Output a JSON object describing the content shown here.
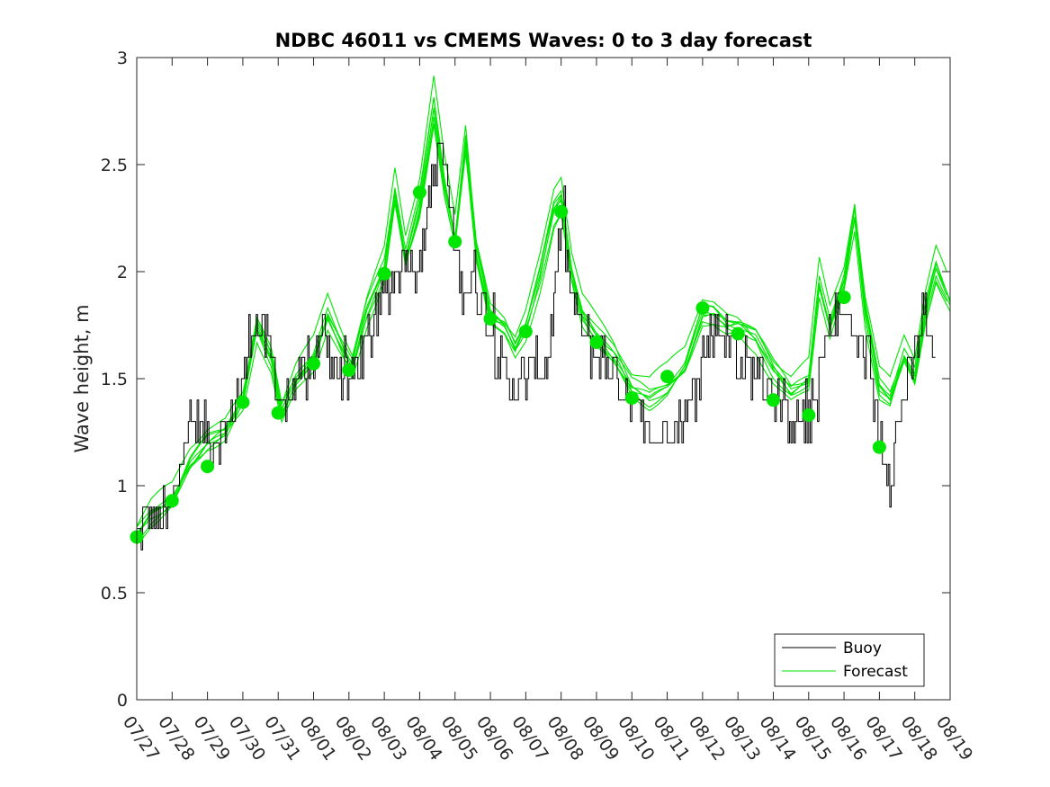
{
  "chart_data": {
    "type": "line",
    "title": "NDBC 46011 vs CMEMS Waves: 0 to 3 day forecast",
    "xlabel": "",
    "ylabel": "Wave height, m",
    "ylim": [
      0,
      3
    ],
    "yticks": [
      0,
      0.5,
      1,
      1.5,
      2,
      2.5,
      3
    ],
    "ytick_labels": [
      "0",
      "0.5",
      "1",
      "1.5",
      "2",
      "2.5",
      "3"
    ],
    "xlim": [
      0,
      23
    ],
    "xtick_labels": [
      "07/27",
      "07/28",
      "07/29",
      "07/30",
      "07/31",
      "08/01",
      "08/02",
      "08/03",
      "08/04",
      "08/05",
      "08/06",
      "08/07",
      "08/08",
      "08/09",
      "08/10",
      "08/11",
      "08/12",
      "08/13",
      "08/14",
      "08/15",
      "08/16",
      "08/17",
      "08/18",
      "08/19"
    ],
    "grid": false,
    "legend": {
      "position": "bottom-right",
      "entries": [
        "Buoy",
        "Forecast"
      ]
    },
    "colors": {
      "buoy": "#000000",
      "forecast": "#00e600",
      "axis": "#262626"
    },
    "buoy_keypoints": {
      "x": [
        0,
        0.4,
        0.9,
        1.1,
        1.3,
        1.6,
        1.9,
        2.2,
        2.6,
        3.0,
        3.3,
        3.6,
        3.9,
        4.2,
        4.6,
        5.0,
        5.3,
        5.6,
        6.0,
        6.3,
        6.6,
        7.0,
        7.3,
        7.6,
        8.0,
        8.3,
        8.6,
        9.0,
        9.2,
        9.5,
        10.0,
        10.4,
        10.7,
        11.0,
        11.3,
        11.6,
        12.0,
        12.4,
        12.8,
        13.2,
        13.6,
        14.0,
        14.3,
        14.6,
        15.0,
        15.4,
        15.8,
        16.0,
        16.3,
        16.6,
        17.0,
        17.3,
        17.6,
        18.0,
        18.3,
        18.6,
        19.0,
        19.3,
        19.6,
        19.9,
        20.2,
        20.6,
        21.0,
        21.3,
        21.6,
        22.0,
        22.3,
        22.6
      ],
      "y": [
        0.8,
        0.85,
        0.85,
        1.0,
        1.2,
        1.3,
        1.25,
        1.2,
        1.3,
        1.5,
        1.8,
        1.7,
        1.5,
        1.35,
        1.45,
        1.6,
        1.75,
        1.55,
        1.5,
        1.6,
        1.7,
        1.9,
        2.0,
        2.1,
        2.0,
        2.4,
        2.6,
        2.1,
        1.9,
        2.0,
        1.7,
        1.5,
        1.45,
        1.5,
        1.6,
        1.55,
        2.2,
        1.8,
        1.65,
        1.6,
        1.5,
        1.4,
        1.3,
        1.2,
        1.25,
        1.3,
        1.45,
        1.6,
        1.75,
        1.7,
        1.6,
        1.55,
        1.55,
        1.45,
        1.35,
        1.3,
        1.3,
        1.5,
        1.75,
        1.8,
        1.75,
        1.6,
        1.25,
        1.05,
        1.35,
        1.6,
        1.8,
        1.55
      ]
    },
    "forecast_keypoints": {
      "x": [
        0,
        0.4,
        1.0,
        1.5,
        2.0,
        2.5,
        3.0,
        3.4,
        3.8,
        4.1,
        4.5,
        5.0,
        5.4,
        5.8,
        6.1,
        6.5,
        7.0,
        7.3,
        7.6,
        8.0,
        8.4,
        8.7,
        9.0,
        9.3,
        9.6,
        10.0,
        10.4,
        10.7,
        11.0,
        11.4,
        11.8,
        12.0,
        12.3,
        12.6,
        13.0,
        13.5,
        14.0,
        14.5,
        15.0,
        15.5,
        16.0,
        16.3,
        16.7,
        17.0,
        17.5,
        18.0,
        18.5,
        19.0,
        19.3,
        19.6,
        20.0,
        20.3,
        20.6,
        21.0,
        21.3,
        21.7,
        22.0,
        22.3,
        22.6,
        23.0
      ],
      "y": [
        0.76,
        0.85,
        0.92,
        1.1,
        1.2,
        1.25,
        1.4,
        1.75,
        1.6,
        1.35,
        1.5,
        1.6,
        1.8,
        1.65,
        1.55,
        1.8,
        2.0,
        2.35,
        2.05,
        2.3,
        2.75,
        2.4,
        2.15,
        2.6,
        2.1,
        1.8,
        1.75,
        1.65,
        1.75,
        2.0,
        2.3,
        2.35,
        2.0,
        1.8,
        1.7,
        1.6,
        1.45,
        1.4,
        1.45,
        1.55,
        1.8,
        1.8,
        1.75,
        1.75,
        1.7,
        1.55,
        1.45,
        1.5,
        1.95,
        1.75,
        1.95,
        2.25,
        1.8,
        1.45,
        1.4,
        1.6,
        1.5,
        1.8,
        2.0,
        1.85
      ]
    },
    "forecast_offsets": [
      0,
      0.03,
      -0.03,
      0.06,
      -0.05,
      0.02,
      -0.02,
      0.08
    ],
    "analysis_points": {
      "x": [
        0,
        1,
        2,
        3,
        4,
        5,
        6,
        7,
        8,
        9,
        10,
        11,
        12,
        13,
        14,
        15,
        16,
        17,
        18,
        19,
        20,
        21
      ],
      "y": [
        0.76,
        0.93,
        1.09,
        1.39,
        1.34,
        1.57,
        1.54,
        1.99,
        2.37,
        2.14,
        1.78,
        1.72,
        2.28,
        1.67,
        1.41,
        1.51,
        1.83,
        1.71,
        1.4,
        1.33,
        1.88,
        1.18
      ]
    }
  }
}
